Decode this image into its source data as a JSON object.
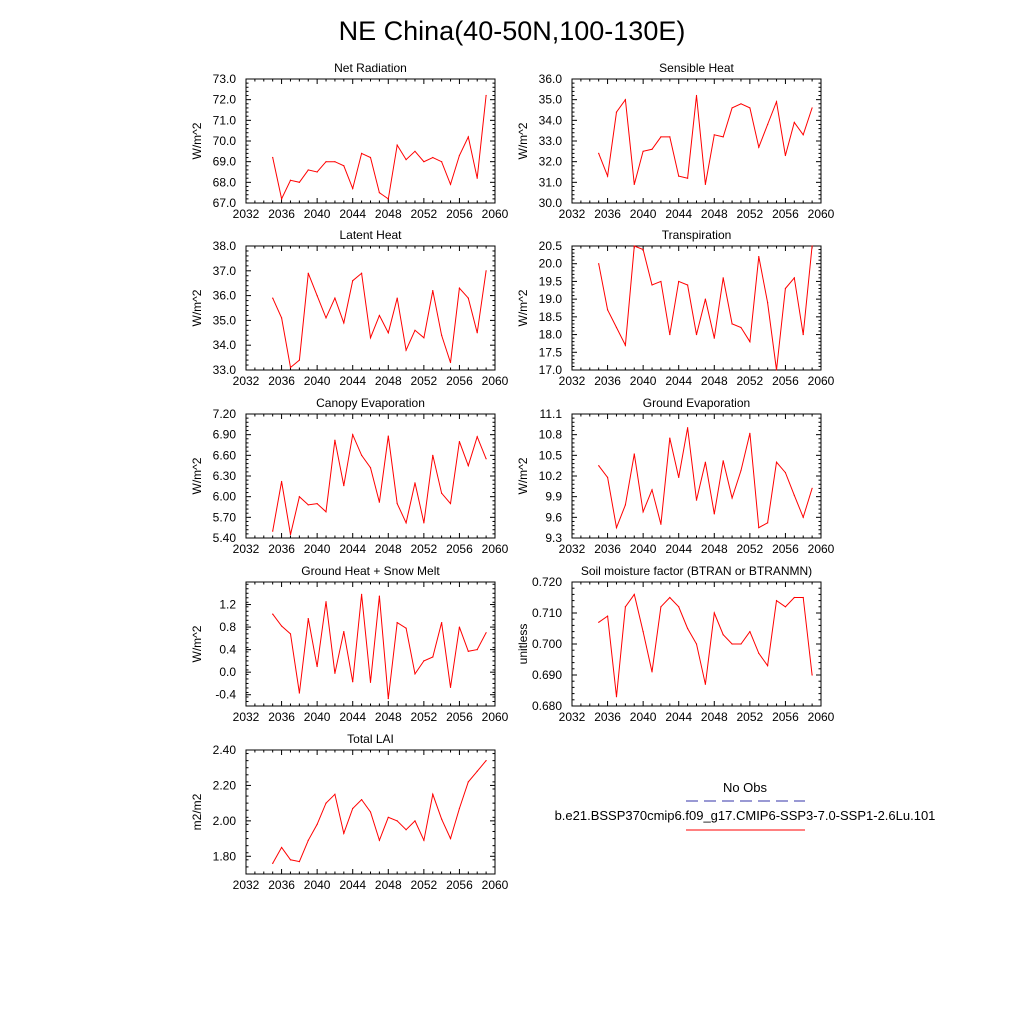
{
  "title": "NE China(40-50N,100-130E)",
  "x_tick_labels": [
    "2032",
    "2036",
    "2040",
    "2044",
    "2048",
    "2052",
    "2056",
    "2060"
  ],
  "chart_data": [
    {
      "type": "line",
      "title": "Net Radiation",
      "ylabel": "W/m^2",
      "ylim": [
        67.0,
        73.0
      ],
      "xlim": [
        2032,
        2060
      ],
      "yticks": [
        "67.0",
        "68.0",
        "69.0",
        "70.0",
        "71.0",
        "72.0",
        "73.0"
      ],
      "x": [
        2035,
        2036,
        2037,
        2038,
        2039,
        2040,
        2041,
        2042,
        2043,
        2044,
        2045,
        2046,
        2047,
        2048,
        2049,
        2050,
        2051,
        2052,
        2053,
        2054,
        2055,
        2056,
        2057,
        2058,
        2059
      ],
      "series": [
        {
          "values": [
            69.2,
            67.2,
            68.1,
            68.0,
            68.6,
            68.5,
            69.0,
            69.0,
            68.8,
            67.7,
            69.4,
            69.2,
            67.5,
            67.2,
            69.8,
            69.1,
            69.5,
            69.0,
            69.2,
            69.0,
            67.9,
            69.3,
            70.2,
            68.2,
            72.2
          ]
        }
      ]
    },
    {
      "type": "line",
      "title": "Sensible Heat",
      "ylabel": "W/m^2",
      "ylim": [
        30.0,
        36.0
      ],
      "xlim": [
        2032,
        2060
      ],
      "yticks": [
        "30.0",
        "31.0",
        "32.0",
        "33.0",
        "34.0",
        "35.0",
        "36.0"
      ],
      "x": [
        2035,
        2036,
        2037,
        2038,
        2039,
        2040,
        2041,
        2042,
        2043,
        2044,
        2045,
        2046,
        2047,
        2048,
        2049,
        2050,
        2051,
        2052,
        2053,
        2054,
        2055,
        2056,
        2057,
        2058,
        2059
      ],
      "series": [
        {
          "values": [
            32.4,
            31.3,
            34.4,
            35.0,
            30.9,
            32.5,
            32.6,
            33.2,
            33.2,
            31.3,
            31.2,
            35.2,
            30.9,
            33.3,
            33.2,
            34.6,
            34.8,
            34.6,
            32.7,
            33.8,
            34.9,
            32.3,
            33.9,
            33.3,
            34.6
          ]
        }
      ]
    },
    {
      "type": "line",
      "title": "Latent Heat",
      "ylabel": "W/m^2",
      "ylim": [
        33.0,
        38.0
      ],
      "xlim": [
        2032,
        2060
      ],
      "yticks": [
        "33.0",
        "34.0",
        "35.0",
        "36.0",
        "37.0",
        "38.0"
      ],
      "x": [
        2035,
        2036,
        2037,
        2038,
        2039,
        2040,
        2041,
        2042,
        2043,
        2044,
        2045,
        2046,
        2047,
        2048,
        2049,
        2050,
        2051,
        2052,
        2053,
        2054,
        2055,
        2056,
        2057,
        2058,
        2059
      ],
      "series": [
        {
          "values": [
            35.9,
            35.1,
            33.1,
            33.4,
            36.9,
            36.0,
            35.1,
            35.9,
            34.9,
            36.6,
            36.9,
            34.3,
            35.2,
            34.5,
            35.9,
            33.8,
            34.6,
            34.3,
            36.2,
            34.4,
            33.3,
            36.3,
            35.9,
            34.5,
            37.0
          ]
        }
      ]
    },
    {
      "type": "line",
      "title": "Transpiration",
      "ylabel": "W/m^2",
      "ylim": [
        17.0,
        20.5
      ],
      "xlim": [
        2032,
        2060
      ],
      "yticks": [
        "17.0",
        "17.5",
        "18.0",
        "18.5",
        "19.0",
        "19.5",
        "20.0",
        "20.5"
      ],
      "x": [
        2035,
        2036,
        2037,
        2038,
        2039,
        2040,
        2041,
        2042,
        2043,
        2044,
        2045,
        2046,
        2047,
        2048,
        2049,
        2050,
        2051,
        2052,
        2053,
        2054,
        2055,
        2056,
        2057,
        2058,
        2059
      ],
      "series": [
        {
          "values": [
            20.0,
            18.7,
            18.2,
            17.7,
            20.5,
            20.4,
            19.4,
            19.5,
            18.0,
            19.5,
            19.4,
            18.0,
            19.0,
            17.9,
            19.6,
            18.3,
            18.2,
            17.8,
            20.2,
            18.9,
            17.0,
            19.3,
            19.6,
            18.0,
            20.5
          ]
        }
      ]
    },
    {
      "type": "line",
      "title": "Canopy Evaporation",
      "ylabel": "W/m^2",
      "ylim": [
        5.4,
        7.2
      ],
      "xlim": [
        2032,
        2060
      ],
      "yticks": [
        "5.40",
        "5.70",
        "6.00",
        "6.30",
        "6.60",
        "6.90",
        "7.20"
      ],
      "x": [
        2035,
        2036,
        2037,
        2038,
        2039,
        2040,
        2041,
        2042,
        2043,
        2044,
        2045,
        2046,
        2047,
        2048,
        2049,
        2050,
        2051,
        2052,
        2053,
        2054,
        2055,
        2056,
        2057,
        2058,
        2059
      ],
      "series": [
        {
          "values": [
            5.5,
            6.22,
            5.45,
            6.0,
            5.88,
            5.9,
            5.78,
            6.82,
            6.16,
            6.9,
            6.6,
            6.42,
            5.92,
            6.88,
            5.9,
            5.62,
            6.2,
            5.62,
            6.6,
            6.05,
            5.9,
            6.8,
            6.45,
            6.87,
            6.55
          ]
        }
      ]
    },
    {
      "type": "line",
      "title": "Ground Evaporation",
      "ylabel": "W/m^2",
      "ylim": [
        9.3,
        11.1
      ],
      "xlim": [
        2032,
        2060
      ],
      "yticks": [
        "9.3",
        "9.6",
        "9.9",
        "10.2",
        "10.5",
        "10.8",
        "11.1"
      ],
      "x": [
        2035,
        2036,
        2037,
        2038,
        2039,
        2040,
        2041,
        2042,
        2043,
        2044,
        2045,
        2046,
        2047,
        2048,
        2049,
        2050,
        2051,
        2052,
        2053,
        2054,
        2055,
        2056,
        2057,
        2058,
        2059
      ],
      "series": [
        {
          "values": [
            10.35,
            10.18,
            9.45,
            9.78,
            10.52,
            9.68,
            10.0,
            9.5,
            10.75,
            10.18,
            10.9,
            9.85,
            10.4,
            9.65,
            10.42,
            9.88,
            10.28,
            10.82,
            9.45,
            9.52,
            10.4,
            10.25,
            9.92,
            9.6,
            10.02
          ]
        }
      ]
    },
    {
      "type": "line",
      "title": "Ground Heat + Snow Melt",
      "ylabel": "W/m^2",
      "ylim": [
        -0.6,
        1.6
      ],
      "xlim": [
        2032,
        2060
      ],
      "yticks": [
        "-0.4",
        "0.0",
        "0.4",
        "0.8",
        "1.2"
      ],
      "x": [
        2035,
        2036,
        2037,
        2038,
        2039,
        2040,
        2041,
        2042,
        2043,
        2044,
        2045,
        2046,
        2047,
        2048,
        2049,
        2050,
        2051,
        2052,
        2053,
        2054,
        2055,
        2056,
        2057,
        2058,
        2059
      ],
      "series": [
        {
          "values": [
            1.03,
            0.82,
            0.68,
            -0.37,
            0.95,
            0.1,
            1.25,
            -0.02,
            0.72,
            -0.17,
            1.38,
            -0.18,
            1.35,
            -0.47,
            0.88,
            0.78,
            -0.03,
            0.2,
            0.27,
            0.88,
            -0.27,
            0.8,
            0.37,
            0.4,
            0.7
          ]
        }
      ]
    },
    {
      "type": "line",
      "title": "Soil moisture factor (BTRAN or BTRANMN)",
      "ylabel": "unitless",
      "ylim": [
        0.68,
        0.72
      ],
      "xlim": [
        2032,
        2060
      ],
      "yticks": [
        "0.680",
        "0.690",
        "0.700",
        "0.710",
        "0.720"
      ],
      "x": [
        2035,
        2036,
        2037,
        2038,
        2039,
        2040,
        2041,
        2042,
        2043,
        2044,
        2045,
        2046,
        2047,
        2048,
        2049,
        2050,
        2051,
        2052,
        2053,
        2054,
        2055,
        2056,
        2057,
        2058,
        2059
      ],
      "series": [
        {
          "values": [
            0.707,
            0.709,
            0.683,
            0.712,
            0.716,
            0.704,
            0.691,
            0.712,
            0.715,
            0.712,
            0.705,
            0.7,
            0.687,
            0.71,
            0.703,
            0.7,
            0.7,
            0.704,
            0.697,
            0.693,
            0.714,
            0.712,
            0.715,
            0.715,
            0.69
          ]
        }
      ]
    },
    {
      "type": "line",
      "title": "Total LAI",
      "ylabel": "m2/m2",
      "ylim": [
        1.7,
        2.4
      ],
      "xlim": [
        2032,
        2060
      ],
      "yticks": [
        "1.80",
        "2.00",
        "2.20",
        "2.40"
      ],
      "x": [
        2035,
        2036,
        2037,
        2038,
        2039,
        2040,
        2041,
        2042,
        2043,
        2044,
        2045,
        2046,
        2047,
        2048,
        2049,
        2050,
        2051,
        2052,
        2053,
        2054,
        2055,
        2056,
        2057,
        2058,
        2059
      ],
      "series": [
        {
          "values": [
            1.76,
            1.85,
            1.78,
            1.77,
            1.89,
            1.98,
            2.1,
            2.15,
            1.93,
            2.07,
            2.12,
            2.05,
            1.89,
            2.02,
            2.0,
            1.95,
            2.0,
            1.89,
            2.15,
            2.01,
            1.9,
            2.07,
            2.22,
            2.28,
            2.34
          ]
        }
      ]
    }
  ],
  "legend": {
    "obs_label": "No Obs",
    "case_label": "b.e21.BSSP370cmip6.f09_g17.CMIP6-SSP3-7.0-SSP1-2.6Lu.101",
    "obs_color": "#3333aa",
    "case_color": "#ff0000"
  },
  "colors": {
    "line": "#ff0000",
    "axis": "#000000"
  }
}
